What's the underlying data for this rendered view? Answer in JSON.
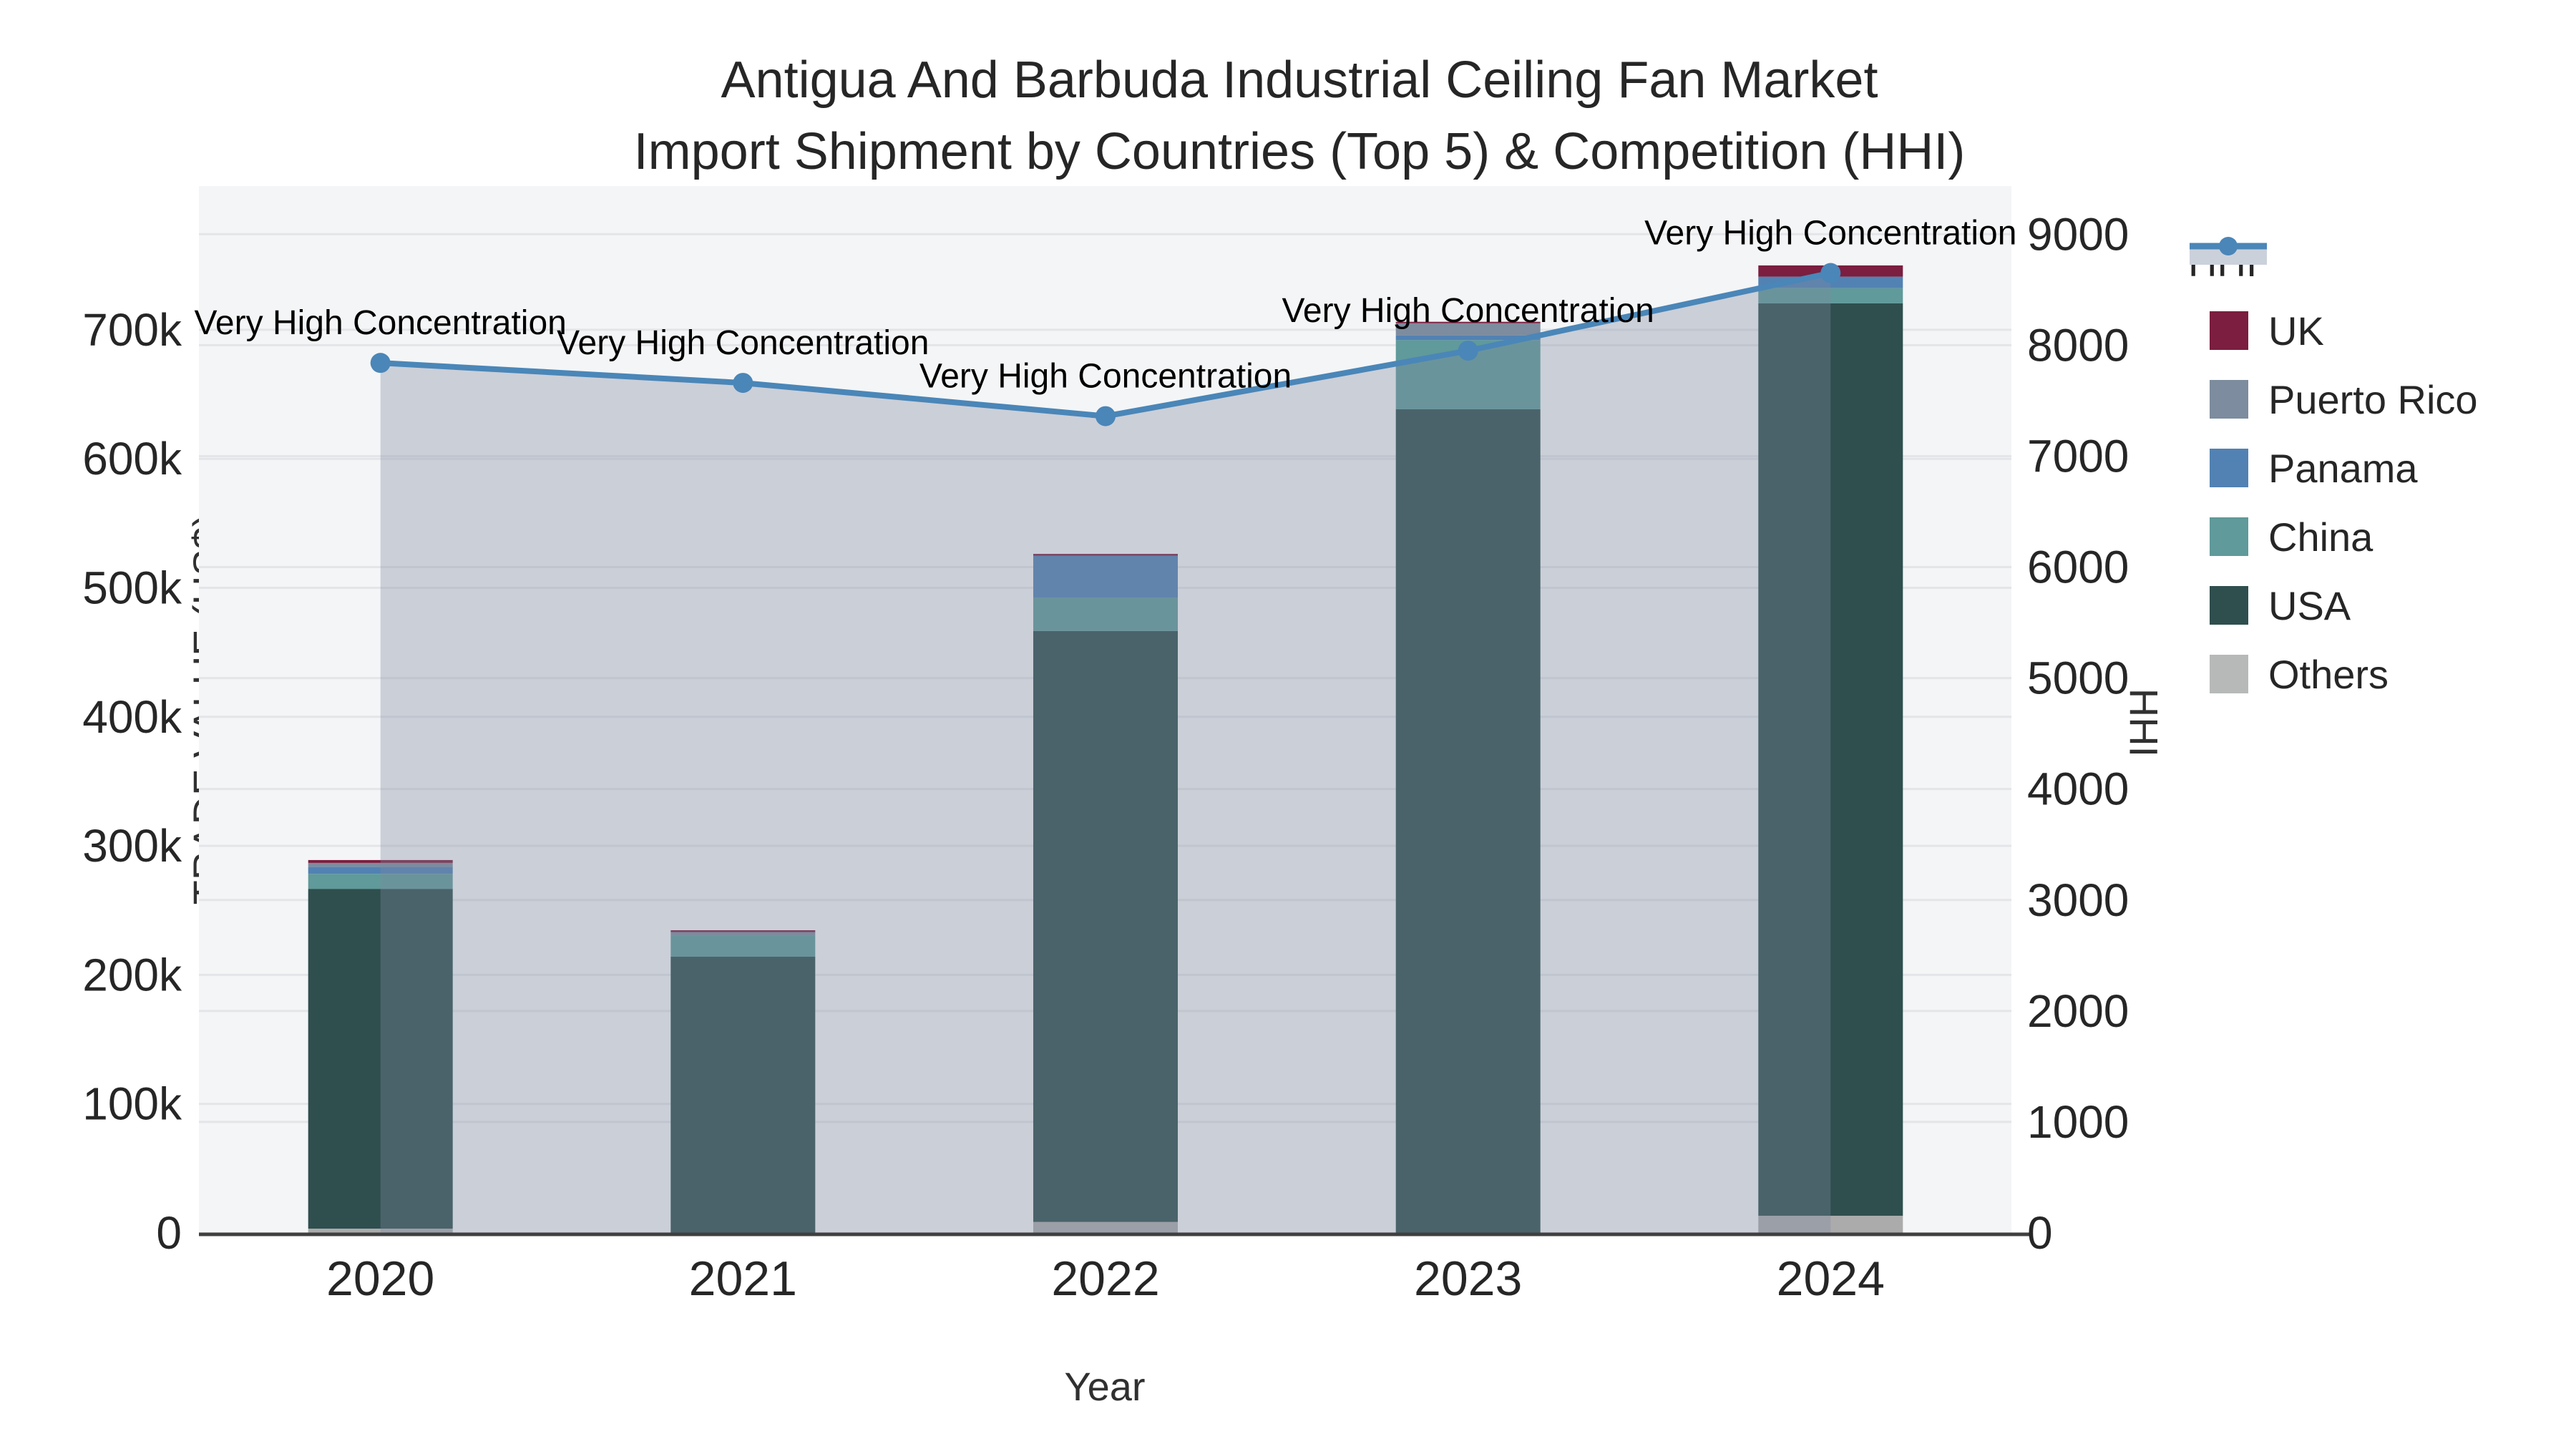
{
  "header": {
    "title_line1": "Antigua And Barbuda Industrial Ceiling Fan Market",
    "title_line2": "Import Shipment by Countries (Top 5) & Competition (HHI)"
  },
  "legend": {
    "items": [
      {
        "label": "HHI",
        "color": "#4A86B8",
        "fill_sample": "#CBD1DB"
      },
      {
        "label": "UK",
        "color": "#7B1E3F"
      },
      {
        "label": "Puerto Rico",
        "color": "#7D8C9E"
      },
      {
        "label": "Panama",
        "color": "#5282B3"
      },
      {
        "label": "China",
        "color": "#609A9A"
      },
      {
        "label": "USA",
        "color": "#2F4F4E"
      },
      {
        "label": "Others",
        "color": "#B7B9B9"
      }
    ]
  },
  "chart_data": {
    "type": "bar+line",
    "title": "Antigua And Barbuda Industrial Ceiling Fan Market Import Shipment by Countries (Top 5) & Competition (HHI)",
    "categories": [
      "2020",
      "2021",
      "2022",
      "2023",
      "2024"
    ],
    "stack_order_note": "bars stacked bottom-to-top in the series order below",
    "series": [
      {
        "name": "Others",
        "color": "#ABABAB",
        "values": [
          3300,
          0,
          8500,
          0,
          13300
        ]
      },
      {
        "name": "USA",
        "color": "#2F4F4E",
        "values": [
          263400,
          214100,
          458100,
          638400,
          707200
        ]
      },
      {
        "name": "China",
        "color": "#609A9A",
        "values": [
          11600,
          16600,
          25900,
          53600,
          11800
        ]
      },
      {
        "name": "Panama",
        "color": "#5282B3",
        "values": [
          5500,
          0,
          32300,
          3700,
          8900
        ]
      },
      {
        "name": "Puerto Rico",
        "color": "#7D8C9E",
        "values": [
          3000,
          2500,
          0,
          9400,
          0
        ]
      },
      {
        "name": "UK",
        "color": "#7B1E3F",
        "values": [
          2200,
          1400,
          1500,
          1100,
          8700
        ]
      }
    ],
    "bar_totals": [
      289000,
      234600,
      526300,
      706200,
      749900
    ],
    "hhi": {
      "name": "HHI",
      "color": "#4A86B8",
      "area_fill": "rgba(125,137,160,0.35)",
      "values": [
        7840,
        7660,
        7360,
        7950,
        8650
      ]
    },
    "annotations": [
      "Very High Concentration",
      "Very High Concentration",
      "Very High Concentration",
      "Very High Concentration",
      "Very High Concentration"
    ],
    "x": {
      "title": "Year"
    },
    "y_left": {
      "title": "TRADE VALUE (US$)",
      "tick_values": [
        0,
        100000,
        200000,
        300000,
        400000,
        500000,
        600000,
        700000
      ],
      "labels": [
        "0",
        "100k",
        "200k",
        "300k",
        "400k",
        "500k",
        "600k",
        "700k"
      ]
    },
    "y_right": {
      "title": "HHI",
      "tick_values": [
        0,
        1000,
        2000,
        3000,
        4000,
        5000,
        6000,
        7000,
        8000,
        9000
      ],
      "labels": [
        "0",
        "1000",
        "2000",
        "3000",
        "4000",
        "5000",
        "6000",
        "7000",
        "8000",
        "9000"
      ]
    },
    "colors": {
      "plot_bg": "#F4F5F6",
      "grid": "#E3E5E8",
      "axis_line": "#3F3F3F",
      "text": "#262626"
    },
    "legend_position": "right",
    "grid": true
  }
}
